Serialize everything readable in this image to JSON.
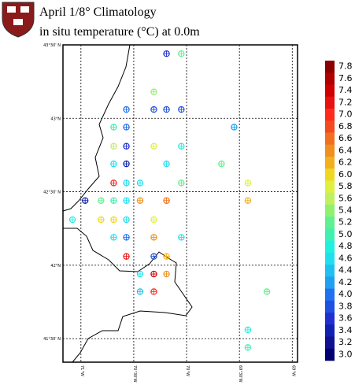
{
  "chart_data": {
    "type": "scatter",
    "title": "April 1/8° Climatology",
    "subtitle": "in situ temperature (°C) at 0.0m",
    "xlim": [
      -71.17,
      -68.95
    ],
    "ylim": [
      41.34,
      43.5
    ],
    "xticks": [
      {
        "value": -71,
        "label": "71°W"
      },
      {
        "value": -70.5,
        "label": "70°30'W"
      },
      {
        "value": -70,
        "label": "70°W"
      },
      {
        "value": -69.5,
        "label": "69°30'W"
      },
      {
        "value": -69,
        "label": "69°W"
      }
    ],
    "yticks": [
      {
        "value": 43.5,
        "label": "43°30' N"
      },
      {
        "value": 43,
        "label": "43°N"
      },
      {
        "value": 42.5,
        "label": "42°30' N"
      },
      {
        "value": 42,
        "label": "42°N"
      },
      {
        "value": 41.5,
        "label": "41°30' N"
      }
    ],
    "grid": true,
    "x": [
      -70.19,
      -70.05,
      -70.31,
      -70.57,
      -70.31,
      -70.19,
      -70.05,
      -69.55,
      -70.69,
      -70.57,
      -70.69,
      -70.57,
      -70.31,
      -70.05,
      -70.69,
      -70.57,
      -70.19,
      -69.67,
      -70.69,
      -70.57,
      -70.44,
      -70.05,
      -69.42,
      -70.96,
      -70.81,
      -70.69,
      -70.57,
      -70.44,
      -70.19,
      -69.42,
      -71.08,
      -70.81,
      -70.69,
      -70.57,
      -70.31,
      -70.69,
      -70.57,
      -70.31,
      -70.05,
      -70.57,
      -70.31,
      -70.19,
      -70.44,
      -70.31,
      -70.19,
      -70.44,
      -70.31,
      -69.24,
      -69.42,
      -69.42
    ],
    "y": [
      43.44,
      43.44,
      43.18,
      43.06,
      43.06,
      43.06,
      43.06,
      42.94,
      42.94,
      42.94,
      42.81,
      42.81,
      42.81,
      42.81,
      42.69,
      42.69,
      42.69,
      42.69,
      42.56,
      42.56,
      42.56,
      42.56,
      42.56,
      42.44,
      42.44,
      42.44,
      42.44,
      42.44,
      42.44,
      42.44,
      42.31,
      42.31,
      42.31,
      42.31,
      42.31,
      42.19,
      42.19,
      42.19,
      42.19,
      42.06,
      42.06,
      42.06,
      41.94,
      41.94,
      41.94,
      41.82,
      41.82,
      41.82,
      41.56,
      41.44
    ],
    "values": [
      3.6,
      5.2,
      5.4,
      4.0,
      3.8,
      3.8,
      3.8,
      4.2,
      5.0,
      4.0,
      5.6,
      3.6,
      5.8,
      4.8,
      4.6,
      3.4,
      4.6,
      5.2,
      7.0,
      4.6,
      4.6,
      5.2,
      5.8,
      3.4,
      5.2,
      5.0,
      4.6,
      6.4,
      6.6,
      6.2,
      4.8,
      6.0,
      6.0,
      4.6,
      5.8,
      4.6,
      4.0,
      6.4,
      4.6,
      7.2,
      3.8,
      6.2,
      4.6,
      7.4,
      6.4,
      4.4,
      7.0,
      5.2,
      4.8,
      5.0
    ],
    "colorbar": {
      "levels": [
        {
          "value": 7.8,
          "label": "7.8"
        },
        {
          "value": 7.6,
          "label": "7.6"
        },
        {
          "value": 7.4,
          "label": "7.4"
        },
        {
          "value": 7.2,
          "label": "7.2"
        },
        {
          "value": 7.0,
          "label": "7.0"
        },
        {
          "value": 6.8,
          "label": "6.8"
        },
        {
          "value": 6.6,
          "label": "6.6"
        },
        {
          "value": 6.4,
          "label": "6.4"
        },
        {
          "value": 6.2,
          "label": "6.2"
        },
        {
          "value": 6.0,
          "label": "6.0"
        },
        {
          "value": 5.8,
          "label": "5.8"
        },
        {
          "value": 5.6,
          "label": "5.6"
        },
        {
          "value": 5.4,
          "label": "5.4"
        },
        {
          "value": 5.2,
          "label": "5.2"
        },
        {
          "value": 5.0,
          "label": "5.0"
        },
        {
          "value": 4.8,
          "label": "4.8"
        },
        {
          "value": 4.6,
          "label": "4.6"
        },
        {
          "value": 4.4,
          "label": "4.4"
        },
        {
          "value": 4.2,
          "label": "4.2"
        },
        {
          "value": 4.0,
          "label": "4.0"
        },
        {
          "value": 3.8,
          "label": "3.8"
        },
        {
          "value": 3.6,
          "label": "3.6"
        },
        {
          "value": 3.4,
          "label": "3.4"
        },
        {
          "value": 3.2,
          "label": "3.2"
        },
        {
          "value": 3.0,
          "label": "3.0"
        }
      ],
      "colors": [
        "#8b0000",
        "#b00000",
        "#d00000",
        "#e81010",
        "#ff2a1a",
        "#f44a20",
        "#f07020",
        "#f09020",
        "#f0b020",
        "#f0d820",
        "#e0f040",
        "#c0f060",
        "#90f070",
        "#60f090",
        "#40f0b0",
        "#20f0e0",
        "#20e0f0",
        "#20c0f0",
        "#20a0f0",
        "#2070f0",
        "#2050e0",
        "#2030d0",
        "#1020b0",
        "#101090",
        "#000070"
      ]
    }
  }
}
